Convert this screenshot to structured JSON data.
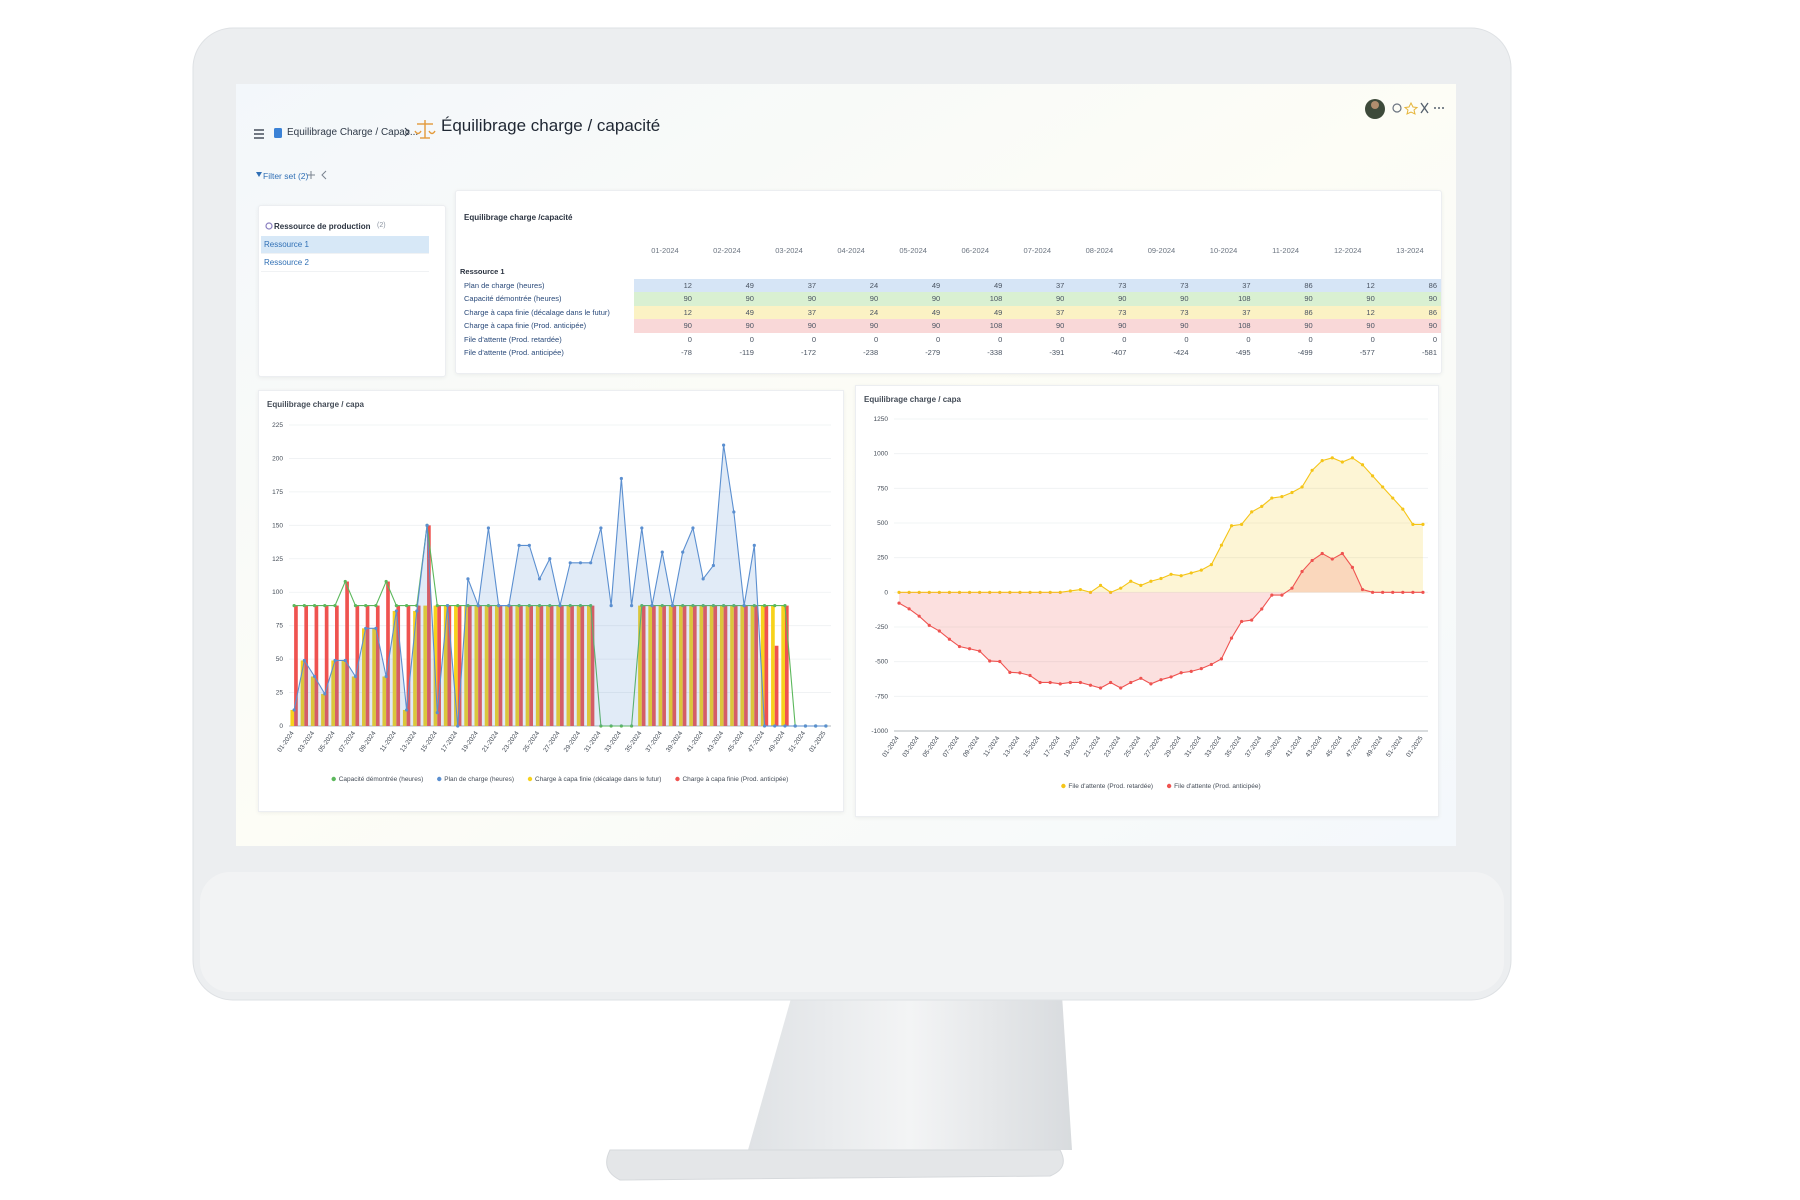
{
  "header": {
    "breadcrumb": "Equilibrage Charge / Capac...",
    "title": "Équilibrage charge / capacité"
  },
  "filter": {
    "label": "Filter set (2)"
  },
  "resource_panel": {
    "title": "Ressource de production",
    "count": "(2)",
    "items": [
      "Ressource 1",
      "Ressource 2"
    ]
  },
  "table": {
    "title": "Equilibrage charge /capacité",
    "columns": [
      "01-2024",
      "02-2024",
      "03-2024",
      "04-2024",
      "05-2024",
      "06-2024",
      "07-2024",
      "08-2024",
      "09-2024",
      "10-2024",
      "11-2024",
      "12-2024",
      "13-2024"
    ],
    "group": "Ressource 1",
    "rows": [
      {
        "label": "Plan de charge (heures)",
        "values": [
          12,
          49,
          37,
          24,
          49,
          49,
          37,
          73,
          73,
          37,
          86,
          12,
          86
        ]
      },
      {
        "label": "Capacité démontrée (heures)",
        "values": [
          90,
          90,
          90,
          90,
          90,
          108,
          90,
          90,
          90,
          108,
          90,
          90,
          90
        ]
      },
      {
        "label": "Charge à capa finie (décalage dans le futur)",
        "values": [
          12,
          49,
          37,
          24,
          49,
          49,
          37,
          73,
          73,
          37,
          86,
          12,
          86
        ]
      },
      {
        "label": "Charge à capa finie (Prod. anticipée)",
        "values": [
          90,
          90,
          90,
          90,
          90,
          108,
          90,
          90,
          90,
          108,
          90,
          90,
          90
        ]
      },
      {
        "label": "File d'attente (Prod. retardée)",
        "values": [
          0,
          0,
          0,
          0,
          0,
          0,
          0,
          0,
          0,
          0,
          0,
          0,
          0
        ]
      },
      {
        "label": "File d'attente (Prod. anticipée)",
        "values": [
          -78,
          -119,
          -172,
          -238,
          -279,
          -338,
          -391,
          -407,
          -424,
          -495,
          -499,
          -577,
          -581
        ]
      }
    ]
  },
  "chart_data": [
    {
      "type": "combo",
      "title": "Equilibrage charge / capa",
      "categories": [
        "01-2024",
        null,
        "03-2024",
        null,
        "05-2024",
        null,
        "07-2024",
        null,
        "09-2024",
        null,
        "11-2024",
        null,
        "13-2024",
        null,
        "15-2024",
        null,
        "17-2024",
        null,
        "19-2024",
        null,
        "21-2024",
        null,
        "23-2024",
        null,
        "25-2024",
        null,
        "27-2024",
        null,
        "29-2024",
        null,
        "31-2024",
        null,
        "33-2024",
        null,
        "35-2024",
        null,
        "37-2024",
        null,
        "39-2024",
        null,
        "41-2024",
        null,
        "43-2024",
        null,
        "45-2024",
        null,
        "47-2024",
        null,
        "49-2024",
        null,
        "51-2024",
        null,
        "01-2025"
      ],
      "ylim": [
        0,
        225
      ],
      "yticks": [
        0,
        25,
        50,
        75,
        100,
        125,
        150,
        175,
        200,
        225
      ],
      "grid": true,
      "series": [
        {
          "name": "Capacité démontrée (heures)",
          "type": "line",
          "color": "#5cb85c",
          "values": [
            90,
            90,
            90,
            90,
            90,
            108,
            90,
            90,
            90,
            108,
            90,
            90,
            90,
            150,
            90,
            90,
            90,
            90,
            90,
            90,
            90,
            90,
            90,
            90,
            90,
            90,
            90,
            90,
            90,
            90,
            0,
            0,
            0,
            0,
            90,
            90,
            90,
            90,
            90,
            90,
            90,
            90,
            90,
            90,
            90,
            90,
            90,
            90,
            90,
            0,
            0,
            0,
            0
          ]
        },
        {
          "name": "Plan de charge (heures)",
          "type": "area",
          "color": "#5b8fd0",
          "values": [
            12,
            49,
            37,
            24,
            49,
            49,
            37,
            73,
            73,
            37,
            86,
            12,
            86,
            150,
            10,
            90,
            0,
            110,
            90,
            148,
            90,
            90,
            135,
            135,
            110,
            125,
            90,
            122,
            122,
            122,
            148,
            90,
            185,
            90,
            148,
            90,
            130,
            90,
            130,
            148,
            110,
            120,
            210,
            160,
            90,
            135,
            0,
            0,
            0,
            0,
            0,
            0,
            0
          ]
        },
        {
          "name": "Charge à capa finie (décalage dans le futur)",
          "type": "bar",
          "color": "#f7d21c",
          "values": [
            12,
            49,
            37,
            24,
            49,
            49,
            37,
            73,
            73,
            37,
            86,
            12,
            86,
            90,
            90,
            90,
            90,
            90,
            90,
            90,
            90,
            90,
            90,
            90,
            90,
            90,
            90,
            90,
            90,
            90,
            0,
            0,
            0,
            0,
            90,
            90,
            90,
            90,
            90,
            90,
            90,
            90,
            90,
            90,
            90,
            90,
            90,
            90,
            90,
            0,
            0,
            0,
            0
          ]
        },
        {
          "name": "Charge à capa finie (Prod. anticipée)",
          "type": "bar",
          "color": "#ef5350",
          "values": [
            90,
            90,
            90,
            90,
            90,
            108,
            90,
            90,
            90,
            108,
            90,
            90,
            90,
            150,
            90,
            90,
            90,
            90,
            90,
            90,
            90,
            90,
            90,
            90,
            90,
            90,
            90,
            90,
            90,
            90,
            0,
            0,
            0,
            0,
            90,
            90,
            90,
            90,
            90,
            90,
            90,
            90,
            90,
            90,
            90,
            90,
            90,
            60,
            90,
            0,
            0,
            0,
            0
          ]
        }
      ]
    },
    {
      "type": "area",
      "title": "Equilibrage charge / capa",
      "categories": [
        "01-2024",
        null,
        "03-2024",
        null,
        "05-2024",
        null,
        "07-2024",
        null,
        "09-2024",
        null,
        "11-2024",
        null,
        "13-2024",
        null,
        "15-2024",
        null,
        "17-2024",
        null,
        "19-2024",
        null,
        "21-2024",
        null,
        "23-2024",
        null,
        "25-2024",
        null,
        "27-2024",
        null,
        "29-2024",
        null,
        "31-2024",
        null,
        "33-2024",
        null,
        "35-2024",
        null,
        "37-2024",
        null,
        "39-2024",
        null,
        "41-2024",
        null,
        "43-2024",
        null,
        "45-2024",
        null,
        "47-2024",
        null,
        "49-2024",
        null,
        "51-2024",
        null,
        "01-2025"
      ],
      "ylim": [
        -1000,
        1250
      ],
      "yticks": [
        -1000,
        -750,
        -500,
        -250,
        0,
        250,
        500,
        750,
        1000,
        1250
      ],
      "grid": true,
      "series": [
        {
          "name": "File d'attente (Prod. retardée)",
          "color": "#f5c518",
          "values": [
            0,
            0,
            0,
            0,
            0,
            0,
            0,
            0,
            0,
            0,
            0,
            0,
            0,
            0,
            0,
            0,
            0,
            10,
            20,
            0,
            50,
            0,
            30,
            80,
            50,
            80,
            100,
            130,
            120,
            140,
            160,
            200,
            340,
            480,
            490,
            580,
            620,
            680,
            690,
            720,
            760,
            880,
            950,
            970,
            940,
            970,
            920,
            840,
            760,
            680,
            600,
            490,
            490
          ]
        },
        {
          "name": "File d'attente (Prod. anticipée)",
          "color": "#ef5350",
          "values": [
            -78,
            -119,
            -172,
            -238,
            -279,
            -338,
            -391,
            -407,
            -424,
            -495,
            -499,
            -577,
            -581,
            -600,
            -650,
            -650,
            -660,
            -650,
            -650,
            -670,
            -690,
            -650,
            -690,
            -650,
            -620,
            -660,
            -630,
            -610,
            -580,
            -570,
            -550,
            -520,
            -480,
            -330,
            -210,
            -200,
            -120,
            -20,
            -20,
            30,
            150,
            230,
            280,
            240,
            280,
            180,
            20,
            0,
            0,
            0,
            0,
            0,
            0
          ]
        }
      ]
    }
  ]
}
